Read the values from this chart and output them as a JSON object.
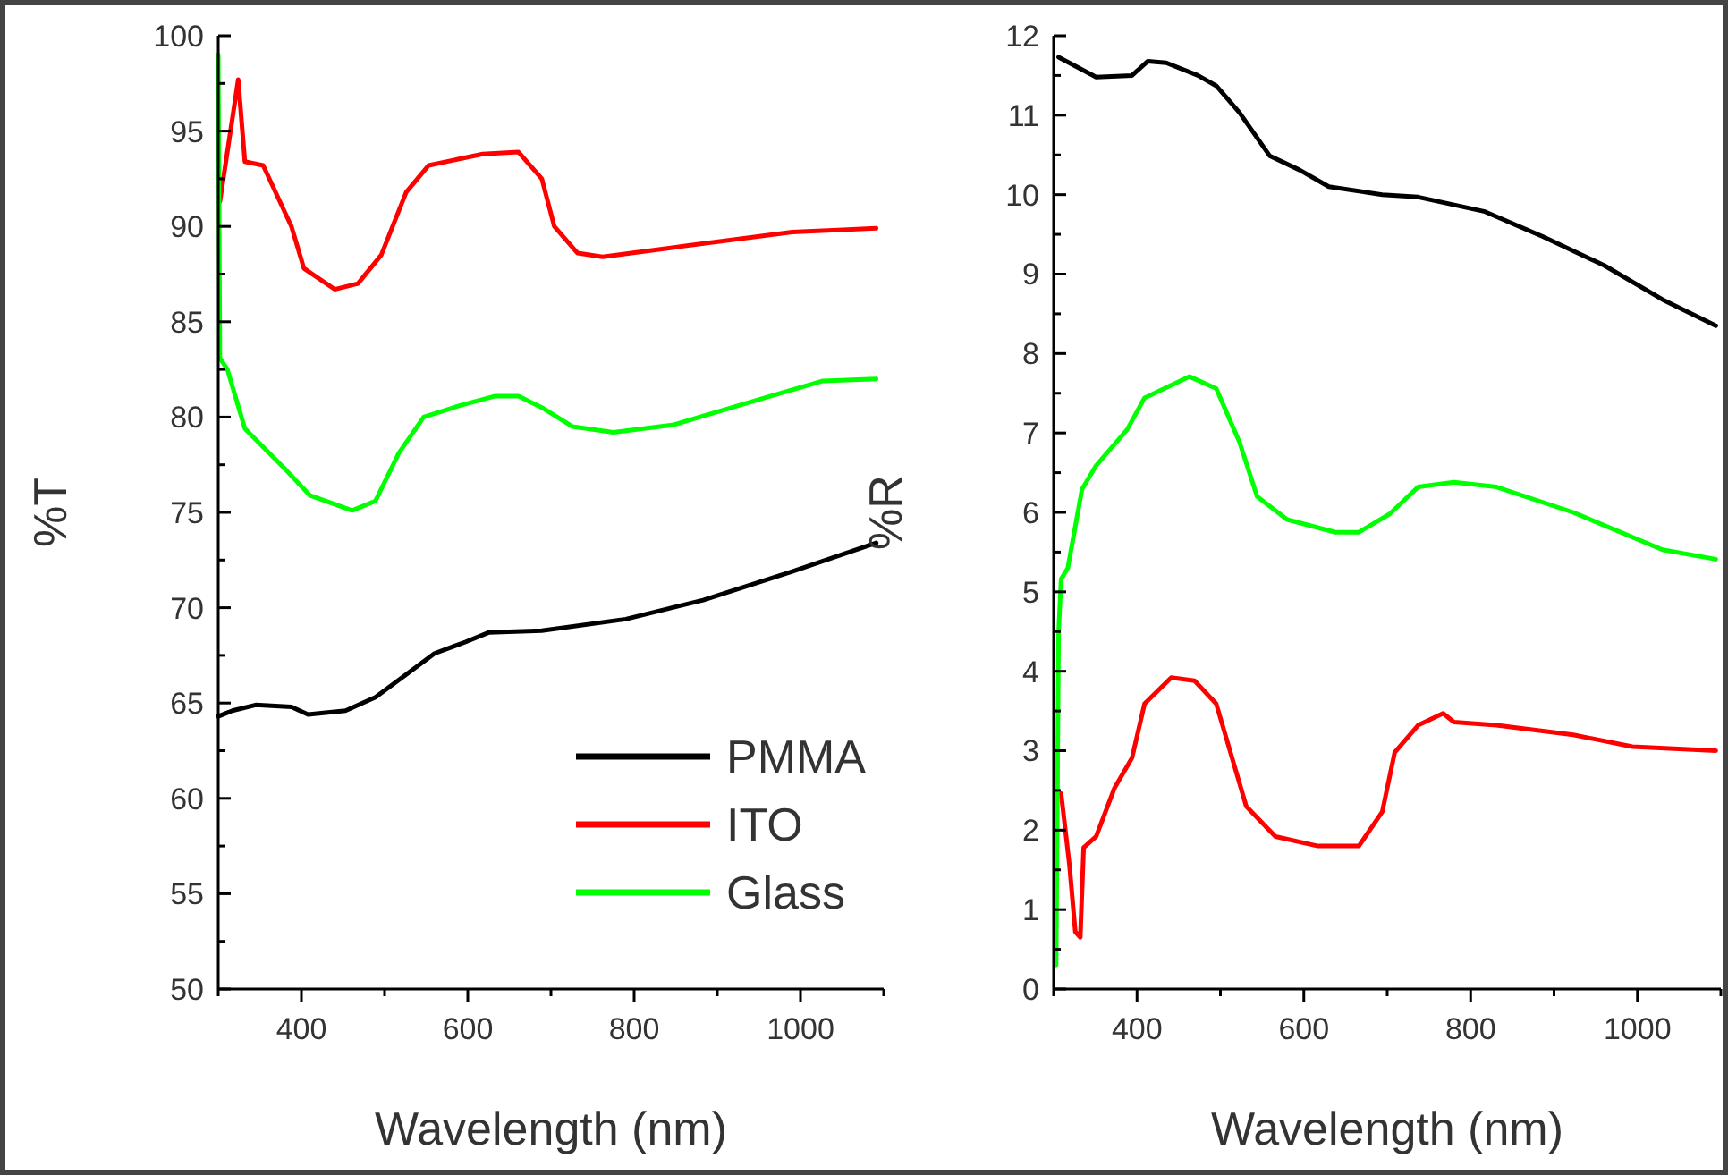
{
  "chart_data": [
    {
      "type": "line",
      "xlabel": "Wavelength (nm)",
      "ylabel": "%T",
      "xlim": [
        300,
        1100
      ],
      "ylim": [
        50,
        100
      ],
      "xticks": [
        {
          "value": 300,
          "label": null
        },
        400,
        {
          "value": 500,
          "label": null
        },
        600,
        {
          "value": 700,
          "label": null
        },
        800,
        {
          "value": 900,
          "label": null
        },
        1000,
        {
          "value": 1100,
          "label": null
        }
      ],
      "yticks": [
        50,
        {
          "value": 52.5,
          "label": null
        },
        55,
        {
          "value": 57.5,
          "label": null
        },
        60,
        {
          "value": 62.5,
          "label": null
        },
        65,
        {
          "value": 67.5,
          "label": null
        },
        70,
        {
          "value": 72.5,
          "label": null
        },
        75,
        {
          "value": 77.5,
          "label": null
        },
        80,
        {
          "value": 82.5,
          "label": null
        },
        85,
        {
          "value": 87.5,
          "label": null
        },
        90,
        {
          "value": 92.5,
          "label": null
        },
        95,
        {
          "value": 97.5,
          "label": null
        },
        100
      ],
      "legend": "bottom right",
      "series": [
        {
          "name": "PMMA",
          "color": "#000000",
          "x": [
            300,
            317,
            345,
            388,
            408,
            453,
            489,
            526,
            560,
            597,
            625,
            689,
            790,
            883,
            990,
            1091
          ],
          "values": [
            64.3,
            64.6,
            64.9,
            64.8,
            64.4,
            64.6,
            65.3,
            66.5,
            67.6,
            68.2,
            68.7,
            68.8,
            69.4,
            70.4,
            71.9,
            73.4
          ]
        },
        {
          "name": "ITO",
          "color": "#ff0000",
          "x": [
            302,
            324,
            332,
            354,
            388,
            403,
            440,
            468,
            496,
            526,
            553,
            618,
            661,
            689,
            704,
            732,
            762,
            848,
            990,
            1091
          ],
          "values": [
            91.3,
            97.7,
            93.4,
            93.2,
            90.0,
            87.8,
            86.7,
            87.0,
            88.5,
            91.8,
            93.2,
            93.8,
            93.9,
            92.5,
            90.0,
            88.6,
            88.4,
            88.9,
            89.7,
            89.9
          ]
        },
        {
          "name": "Glass",
          "color": "#00ff00",
          "x": [
            300,
            302,
            311,
            332,
            382,
            410,
            461,
            489,
            517,
            547,
            590,
            633,
            661,
            689,
            726,
            775,
            848,
            956,
            1027,
            1091
          ],
          "values": [
            99.0,
            83.1,
            82.5,
            79.4,
            77.2,
            75.9,
            75.1,
            75.6,
            78.1,
            80.0,
            80.6,
            81.1,
            81.1,
            80.5,
            79.5,
            79.2,
            79.6,
            81.0,
            81.9,
            82.0
          ]
        }
      ]
    },
    {
      "type": "line",
      "xlabel": "Wavelength (nm)",
      "ylabel": "%R",
      "xlim": [
        300,
        1100
      ],
      "ylim": [
        0,
        12
      ],
      "xticks": [
        {
          "value": 300,
          "label": null
        },
        400,
        {
          "value": 500,
          "label": null
        },
        600,
        {
          "value": 700,
          "label": null
        },
        800,
        {
          "value": 900,
          "label": null
        },
        1000,
        {
          "value": 1100,
          "label": null
        }
      ],
      "yticks": [
        0,
        {
          "value": 0.5,
          "label": null
        },
        1,
        {
          "value": 1.5,
          "label": null
        },
        2,
        {
          "value": 2.5,
          "label": null
        },
        3,
        {
          "value": 3.5,
          "label": null
        },
        4,
        {
          "value": 4.5,
          "label": null
        },
        5,
        {
          "value": 5.5,
          "label": null
        },
        6,
        {
          "value": 6.5,
          "label": null
        },
        7,
        {
          "value": 7.5,
          "label": null
        },
        8,
        {
          "value": 8.5,
          "label": null
        },
        9,
        {
          "value": 9.5,
          "label": null
        },
        10,
        {
          "value": 10.5,
          "label": null
        },
        11,
        {
          "value": 11.5,
          "label": null
        },
        12
      ],
      "series": [
        {
          "color": "#000000",
          "x": [
            306,
            351,
            394,
            413,
            435,
            473,
            495,
            523,
            559,
            595,
            630,
            694,
            737,
            816,
            887,
            960,
            1030,
            1094
          ],
          "values": [
            11.73,
            11.48,
            11.5,
            11.68,
            11.66,
            11.5,
            11.37,
            11.03,
            10.49,
            10.31,
            10.1,
            10.0,
            9.97,
            9.79,
            9.47,
            9.11,
            8.68,
            8.35
          ]
        },
        {
          "color": "#ff0000",
          "x": [
            309,
            319,
            326,
            332,
            336,
            351,
            373,
            394,
            409,
            441,
            469,
            495,
            531,
            566,
            617,
            666,
            694,
            709,
            737,
            767,
            780,
            831,
            923,
            994,
            1094
          ],
          "values": [
            2.46,
            1.56,
            0.72,
            0.65,
            1.78,
            1.92,
            2.53,
            2.91,
            3.59,
            3.92,
            3.88,
            3.59,
            2.3,
            1.92,
            1.8,
            1.8,
            2.23,
            2.98,
            3.32,
            3.47,
            3.36,
            3.32,
            3.2,
            3.05,
            3.0
          ]
        },
        {
          "color": "#00ff00",
          "x": [
            303,
            306,
            309,
            317,
            334,
            351,
            388,
            409,
            463,
            495,
            523,
            544,
            580,
            638,
            666,
            703,
            737,
            780,
            831,
            923,
            1030,
            1094
          ],
          "values": [
            0.3,
            4.5,
            5.16,
            5.3,
            6.29,
            6.59,
            7.04,
            7.44,
            7.71,
            7.56,
            6.88,
            6.2,
            5.91,
            5.75,
            5.75,
            5.98,
            6.32,
            6.38,
            6.32,
            6.0,
            5.53,
            5.41
          ]
        }
      ]
    }
  ]
}
